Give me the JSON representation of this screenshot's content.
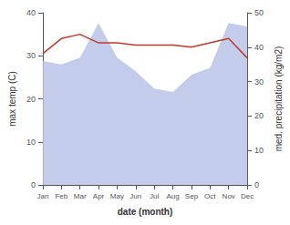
{
  "chart_data": {
    "type": "line",
    "categories": [
      "Jan",
      "Feb",
      "Mar",
      "Apr",
      "May",
      "Jun",
      "Jul",
      "Aug",
      "Sep",
      "Oct",
      "Nov",
      "Dec"
    ],
    "xlabel": "date (month)",
    "ylabel": "max temp (C)",
    "y2label": "med. precipitation (kg/m2)",
    "ylim": [
      0,
      40
    ],
    "yticks": [
      0,
      10,
      20,
      30,
      40
    ],
    "y2lim": [
      0,
      50
    ],
    "y2ticks": [
      0,
      10,
      20,
      30,
      40,
      50
    ],
    "grid": false,
    "series": [
      {
        "type": "area",
        "axis": "y2",
        "color": "#b8c4e8",
        "values": [
          36,
          35,
          37,
          47,
          37,
          33,
          28,
          27,
          32,
          34,
          47,
          46
        ]
      },
      {
        "type": "line",
        "color": "#c0392b",
        "values": [
          30.5,
          34,
          35,
          33,
          33,
          32.5,
          32.5,
          32.5,
          32,
          33,
          34,
          29.5
        ]
      }
    ]
  }
}
